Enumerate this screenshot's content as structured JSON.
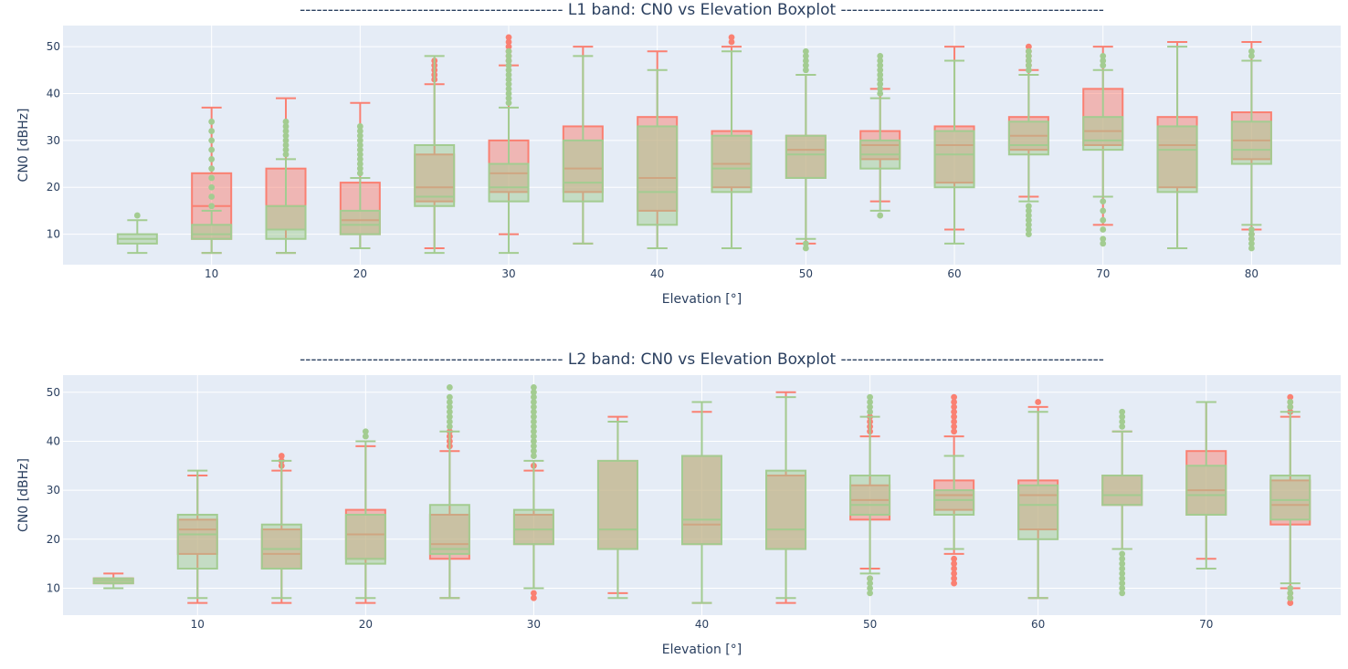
{
  "chart_data": [
    {
      "type": "box",
      "title": "-----------------------------------------------  L1 band: CN0 vs Elevation Boxplot  -----------------------------------------------",
      "xlabel": "Elevation [°]",
      "ylabel": "CN0 [dBHz]",
      "xlim": [
        0,
        86
      ],
      "ylim": [
        3.5,
        54.5
      ],
      "xticks": [
        10,
        20,
        30,
        40,
        50,
        60,
        70,
        80
      ],
      "yticks": [
        10,
        20,
        30,
        40,
        50
      ],
      "grid": true,
      "series": [
        {
          "name": "red",
          "color": "#fa8072",
          "boxes": [
            {
              "x": 10,
              "lf": 6,
              "q1": 9,
              "med": 16,
              "q3": 23,
              "uf": 37,
              "out": []
            },
            {
              "x": 15,
              "lf": 6,
              "q1": 11,
              "med": 16,
              "q3": 24,
              "uf": 39,
              "out": []
            },
            {
              "x": 20,
              "lf": 7,
              "q1": 10,
              "med": 13,
              "q3": 21,
              "uf": 38,
              "out": []
            },
            {
              "x": 25,
              "lf": 7,
              "q1": 17,
              "med": 20,
              "q3": 27,
              "uf": 42,
              "out": [
                43,
                44,
                45,
                46,
                47
              ]
            },
            {
              "x": 30,
              "lf": 10,
              "q1": 19,
              "med": 23,
              "q3": 30,
              "uf": 46,
              "out": [
                47,
                48,
                49,
                50,
                51,
                52
              ]
            },
            {
              "x": 35,
              "lf": 8,
              "q1": 19,
              "med": 24,
              "q3": 33,
              "uf": 50,
              "out": []
            },
            {
              "x": 40,
              "lf": 7,
              "q1": 15,
              "med": 22,
              "q3": 35,
              "uf": 49,
              "out": []
            },
            {
              "x": 45,
              "lf": 7,
              "q1": 20,
              "med": 25,
              "q3": 32,
              "uf": 50,
              "out": [
                51,
                52
              ]
            },
            {
              "x": 50,
              "lf": 8,
              "q1": 22,
              "med": 28,
              "q3": 31,
              "uf": 44,
              "out": []
            },
            {
              "x": 55,
              "lf": 17,
              "q1": 26,
              "med": 29,
              "q3": 32,
              "uf": 41,
              "out": []
            },
            {
              "x": 60,
              "lf": 11,
              "q1": 21,
              "med": 29,
              "q3": 33,
              "uf": 50,
              "out": []
            },
            {
              "x": 65,
              "lf": 18,
              "q1": 28,
              "med": 31,
              "q3": 35,
              "uf": 45,
              "out": [
                46,
                47,
                48,
                49,
                50
              ]
            },
            {
              "x": 70,
              "lf": 12,
              "q1": 29,
              "med": 32,
              "q3": 41,
              "uf": 50,
              "out": []
            },
            {
              "x": 75,
              "lf": 7,
              "q1": 20,
              "med": 29,
              "q3": 35,
              "uf": 51,
              "out": []
            },
            {
              "x": 80,
              "lf": 11,
              "q1": 26,
              "med": 30,
              "q3": 36,
              "uf": 51,
              "out": [
                10,
                9
              ]
            }
          ]
        },
        {
          "name": "green",
          "color": "#a3cc91",
          "boxes": [
            {
              "x": 5,
              "lf": 6,
              "q1": 8,
              "med": 9,
              "q3": 10,
              "uf": 13,
              "out": [
                14
              ]
            },
            {
              "x": 10,
              "lf": 6,
              "q1": 9,
              "med": 10,
              "q3": 12,
              "uf": 15,
              "out": [
                16,
                18,
                20,
                22,
                24,
                26,
                28,
                30,
                32,
                34
              ]
            },
            {
              "x": 15,
              "lf": 6,
              "q1": 9,
              "med": 11,
              "q3": 16,
              "uf": 26,
              "out": [
                27,
                28,
                29,
                30,
                31,
                32,
                33,
                34
              ]
            },
            {
              "x": 20,
              "lf": 7,
              "q1": 10,
              "med": 12,
              "q3": 15,
              "uf": 22,
              "out": [
                23,
                24,
                25,
                26,
                27,
                28,
                29,
                30,
                31,
                32,
                33
              ]
            },
            {
              "x": 25,
              "lf": 6,
              "q1": 16,
              "med": 18,
              "q3": 29,
              "uf": 48,
              "out": []
            },
            {
              "x": 30,
              "lf": 6,
              "q1": 17,
              "med": 20,
              "q3": 25,
              "uf": 37,
              "out": [
                38,
                39,
                40,
                41,
                42,
                43,
                44,
                45,
                46,
                47,
                48,
                49
              ]
            },
            {
              "x": 35,
              "lf": 8,
              "q1": 17,
              "med": 21,
              "q3": 30,
              "uf": 48,
              "out": []
            },
            {
              "x": 40,
              "lf": 7,
              "q1": 12,
              "med": 19,
              "q3": 33,
              "uf": 45,
              "out": []
            },
            {
              "x": 45,
              "lf": 7,
              "q1": 19,
              "med": 24,
              "q3": 31,
              "uf": 49,
              "out": []
            },
            {
              "x": 50,
              "lf": 9,
              "q1": 22,
              "med": 27,
              "q3": 31,
              "uf": 44,
              "out": [
                45,
                46,
                47,
                48,
                49,
                8,
                7
              ]
            },
            {
              "x": 55,
              "lf": 15,
              "q1": 24,
              "med": 27,
              "q3": 30,
              "uf": 39,
              "out": [
                40,
                41,
                42,
                43,
                44,
                45,
                46,
                47,
                48,
                14
              ]
            },
            {
              "x": 60,
              "lf": 8,
              "q1": 20,
              "med": 27,
              "q3": 32,
              "uf": 47,
              "out": []
            },
            {
              "x": 65,
              "lf": 17,
              "q1": 27,
              "med": 29,
              "q3": 34,
              "uf": 44,
              "out": [
                45,
                46,
                47,
                48,
                49,
                16,
                15,
                14,
                13,
                12,
                11,
                10
              ]
            },
            {
              "x": 70,
              "lf": 18,
              "q1": 28,
              "med": 30,
              "q3": 35,
              "uf": 45,
              "out": [
                46,
                47,
                48,
                17,
                15,
                13,
                11,
                9,
                8
              ]
            },
            {
              "x": 75,
              "lf": 7,
              "q1": 19,
              "med": 28,
              "q3": 33,
              "uf": 50,
              "out": []
            },
            {
              "x": 80,
              "lf": 12,
              "q1": 25,
              "med": 28,
              "q3": 34,
              "uf": 47,
              "out": [
                48,
                49,
                11,
                10,
                9,
                8,
                7
              ]
            }
          ]
        }
      ]
    },
    {
      "type": "box",
      "title": "-----------------------------------------------  L2 band: CN0 vs Elevation Boxplot  -----------------------------------------------",
      "xlabel": "Elevation [°]",
      "ylabel": "CN0 [dBHz]",
      "xlim": [
        2,
        78
      ],
      "ylim": [
        4.5,
        53.5
      ],
      "xticks": [
        10,
        20,
        30,
        40,
        50,
        60,
        70
      ],
      "yticks": [
        10,
        20,
        30,
        40,
        50
      ],
      "grid": true,
      "series": [
        {
          "name": "red",
          "color": "#fa8072",
          "boxes": [
            {
              "x": 5,
              "lf": 11,
              "q1": 11,
              "med": 12,
              "q3": 12,
              "uf": 13,
              "out": []
            },
            {
              "x": 10,
              "lf": 7,
              "q1": 17,
              "med": 22,
              "q3": 24,
              "uf": 33,
              "out": []
            },
            {
              "x": 15,
              "lf": 7,
              "q1": 14,
              "med": 17,
              "q3": 22,
              "uf": 34,
              "out": [
                35,
                36,
                37
              ]
            },
            {
              "x": 20,
              "lf": 7,
              "q1": 16,
              "med": 21,
              "q3": 26,
              "uf": 39,
              "out": []
            },
            {
              "x": 25,
              "lf": 8,
              "q1": 16,
              "med": 19,
              "q3": 25,
              "uf": 38,
              "out": [
                39,
                40,
                41,
                42
              ]
            },
            {
              "x": 30,
              "lf": 10,
              "q1": 19,
              "med": 22,
              "q3": 25,
              "uf": 34,
              "out": [
                35,
                9,
                8
              ]
            },
            {
              "x": 35,
              "lf": 9,
              "q1": 18,
              "med": 22,
              "q3": 36,
              "uf": 45,
              "out": []
            },
            {
              "x": 40,
              "lf": 7,
              "q1": 19,
              "med": 23,
              "q3": 37,
              "uf": 46,
              "out": []
            },
            {
              "x": 45,
              "lf": 7,
              "q1": 18,
              "med": 22,
              "q3": 33,
              "uf": 50,
              "out": []
            },
            {
              "x": 50,
              "lf": 14,
              "q1": 24,
              "med": 28,
              "q3": 31,
              "uf": 41,
              "out": [
                42,
                43,
                44,
                45,
                12
              ]
            },
            {
              "x": 55,
              "lf": 17,
              "q1": 26,
              "med": 29,
              "q3": 32,
              "uf": 41,
              "out": [
                42,
                43,
                44,
                45,
                46,
                47,
                48,
                49,
                16,
                15,
                14,
                13,
                12,
                11
              ]
            },
            {
              "x": 60,
              "lf": 8,
              "q1": 22,
              "med": 29,
              "q3": 32,
              "uf": 47,
              "out": [
                48
              ]
            },
            {
              "x": 65,
              "lf": 18,
              "q1": 27,
              "med": 29,
              "q3": 33,
              "uf": 42,
              "out": []
            },
            {
              "x": 70,
              "lf": 16,
              "q1": 25,
              "med": 30,
              "q3": 38,
              "uf": 48,
              "out": []
            },
            {
              "x": 75,
              "lf": 10,
              "q1": 23,
              "med": 27,
              "q3": 32,
              "uf": 45,
              "out": [
                46,
                47,
                48,
                49,
                9,
                8,
                7
              ]
            }
          ]
        },
        {
          "name": "green",
          "color": "#a3cc91",
          "boxes": [
            {
              "x": 5,
              "lf": 10,
              "q1": 11,
              "med": 11.5,
              "q3": 12,
              "uf": 12,
              "out": []
            },
            {
              "x": 10,
              "lf": 8,
              "q1": 14,
              "med": 21,
              "q3": 25,
              "uf": 34,
              "out": []
            },
            {
              "x": 15,
              "lf": 8,
              "q1": 14,
              "med": 18,
              "q3": 23,
              "uf": 36,
              "out": []
            },
            {
              "x": 20,
              "lf": 8,
              "q1": 15,
              "med": 16,
              "q3": 25,
              "uf": 40,
              "out": [
                41,
                42
              ]
            },
            {
              "x": 25,
              "lf": 8,
              "q1": 17,
              "med": 18,
              "q3": 27,
              "uf": 42,
              "out": [
                43,
                44,
                45,
                46,
                47,
                48,
                49,
                51
              ]
            },
            {
              "x": 30,
              "lf": 10,
              "q1": 19,
              "med": 22,
              "q3": 26,
              "uf": 36,
              "out": [
                37,
                38,
                39,
                40,
                41,
                42,
                43,
                44,
                45,
                46,
                47,
                48,
                49,
                50,
                51
              ]
            },
            {
              "x": 35,
              "lf": 8,
              "q1": 18,
              "med": 22,
              "q3": 36,
              "uf": 44,
              "out": []
            },
            {
              "x": 40,
              "lf": 7,
              "q1": 19,
              "med": 24,
              "q3": 37,
              "uf": 48,
              "out": []
            },
            {
              "x": 45,
              "lf": 8,
              "q1": 18,
              "med": 22,
              "q3": 34,
              "uf": 49,
              "out": []
            },
            {
              "x": 50,
              "lf": 13,
              "q1": 25,
              "med": 27,
              "q3": 33,
              "uf": 45,
              "out": [
                46,
                47,
                48,
                49,
                12,
                11,
                10,
                9
              ]
            },
            {
              "x": 55,
              "lf": 18,
              "q1": 25,
              "med": 28,
              "q3": 30,
              "uf": 37,
              "out": []
            },
            {
              "x": 60,
              "lf": 8,
              "q1": 20,
              "med": 27,
              "q3": 31,
              "uf": 46,
              "out": []
            },
            {
              "x": 65,
              "lf": 18,
              "q1": 27,
              "med": 29,
              "q3": 33,
              "uf": 42,
              "out": [
                43,
                44,
                45,
                46,
                17,
                16,
                15,
                14,
                13,
                12,
                11,
                10,
                9
              ]
            },
            {
              "x": 70,
              "lf": 14,
              "q1": 25,
              "med": 29,
              "q3": 35,
              "uf": 48,
              "out": []
            },
            {
              "x": 75,
              "lf": 11,
              "q1": 24,
              "med": 28,
              "q3": 33,
              "uf": 46,
              "out": [
                47,
                48,
                10,
                9,
                8
              ]
            }
          ]
        }
      ]
    }
  ]
}
